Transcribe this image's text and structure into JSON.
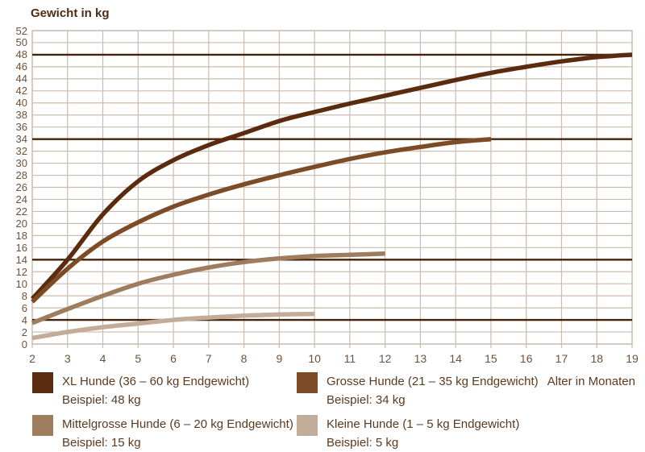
{
  "chart_data": {
    "type": "line",
    "title": "Gewicht in kg",
    "xlabel": "Alter in Monaten",
    "xlim": [
      2,
      19
    ],
    "ylim": [
      0,
      52
    ],
    "x_ticks": [
      2,
      3,
      4,
      5,
      6,
      7,
      8,
      9,
      10,
      11,
      12,
      13,
      14,
      15,
      16,
      17,
      18,
      19
    ],
    "y_ticks": [
      0,
      2,
      4,
      6,
      8,
      10,
      12,
      14,
      16,
      18,
      20,
      22,
      24,
      26,
      28,
      30,
      32,
      34,
      36,
      38,
      40,
      42,
      44,
      46,
      48,
      50,
      52
    ],
    "grid": true,
    "grid_color": "#cbbcad",
    "reference_line_color": "#45220a",
    "reference_lines": [
      48,
      34,
      14,
      4
    ],
    "legend_position": "bottom",
    "series": [
      {
        "name": "XL Hunde (36 – 60 kg Endgewicht)",
        "example": "Beispiel: 48 kg",
        "color": "#5a2b0e",
        "x": [
          2,
          3,
          4,
          5,
          6,
          7,
          8,
          9,
          10,
          11,
          12,
          13,
          14,
          15,
          16,
          17,
          18,
          19
        ],
        "values": [
          7.5,
          14,
          21.5,
          27,
          30.5,
          33,
          35,
          37,
          38.5,
          39.9,
          41.2,
          42.5,
          43.8,
          45,
          46,
          46.9,
          47.6,
          48
        ]
      },
      {
        "name": "Grosse Hunde (21 – 35 kg Endgewicht)",
        "example": "Beispiel: 34 kg",
        "color": "#7d4b26",
        "x": [
          2,
          3,
          4,
          5,
          6,
          7,
          8,
          9,
          10,
          11,
          12,
          13,
          14,
          15
        ],
        "values": [
          7,
          12.5,
          17,
          20.2,
          22.8,
          24.8,
          26.5,
          28,
          29.4,
          30.7,
          31.8,
          32.7,
          33.5,
          34
        ]
      },
      {
        "name": "Mittelgrosse Hunde (6 – 20 kg Endgewicht)",
        "example": "Beispiel: 15 kg",
        "color": "#9e7c5e",
        "x": [
          2,
          3,
          4,
          5,
          6,
          7,
          8,
          9,
          10,
          11,
          12
        ],
        "values": [
          3.5,
          5.8,
          8,
          10,
          11.5,
          12.7,
          13.6,
          14.2,
          14.6,
          14.8,
          15
        ]
      },
      {
        "name": "Kleine Hunde (1 – 5 kg Endgewicht)",
        "example": "Beispiel: 5 kg",
        "color": "#c3ac99",
        "x": [
          2,
          3,
          4,
          5,
          6,
          7,
          8,
          9,
          10
        ],
        "values": [
          1,
          2,
          2.8,
          3.4,
          4,
          4.4,
          4.7,
          4.9,
          5
        ]
      }
    ]
  }
}
